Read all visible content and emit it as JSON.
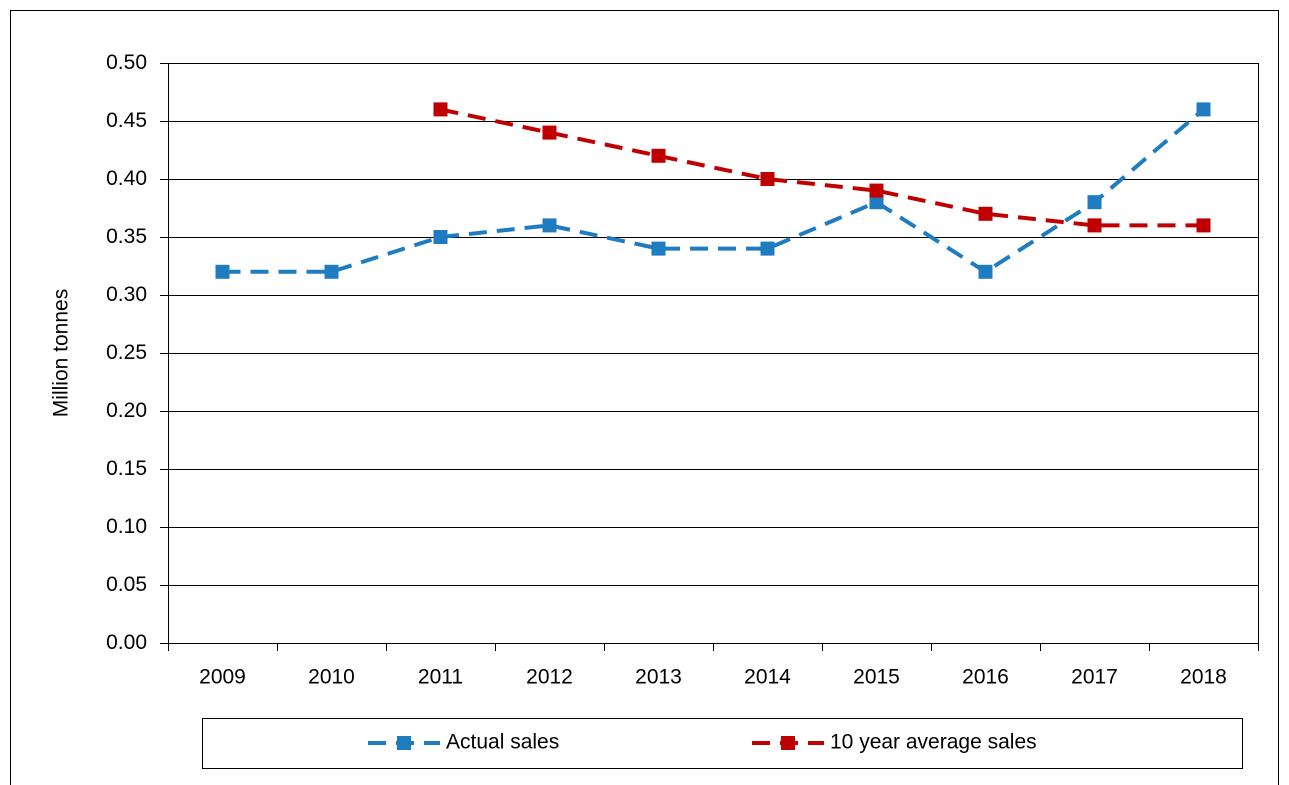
{
  "chart_data": {
    "type": "line",
    "y_label": "Million tonnes",
    "categories": [
      "2009",
      "2010",
      "2011",
      "2012",
      "2013",
      "2014",
      "2015",
      "2016",
      "2017",
      "2018"
    ],
    "series": [
      {
        "name": "Actual sales",
        "color": "#1f7cc1",
        "values": [
          0.32,
          0.32,
          0.35,
          0.36,
          0.34,
          0.34,
          0.38,
          0.32,
          0.38,
          0.46
        ]
      },
      {
        "name": "10 year average sales",
        "color": "#c00000",
        "values": [
          null,
          null,
          0.46,
          0.44,
          0.42,
          0.4,
          0.39,
          0.37,
          0.36,
          0.36
        ]
      }
    ],
    "ylim": [
      0,
      0.5
    ],
    "yticks": [
      {
        "value": 0,
        "label": "0.00"
      },
      0.05,
      {
        "value": 0.1,
        "label": "0.10"
      },
      0.15,
      {
        "value": 0.2,
        "label": "0.20"
      },
      0.25,
      {
        "value": 0.3,
        "label": "0.30"
      },
      0.35,
      {
        "value": 0.4,
        "label": "0.40"
      },
      0.45,
      {
        "value": 0.5,
        "label": "0.50"
      }
    ],
    "grid": true,
    "legend": "bottom",
    "line_style": "dashed"
  }
}
